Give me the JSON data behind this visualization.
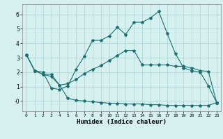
{
  "title": "",
  "xlabel": "Humidex (Indice chaleur)",
  "bg_color": "#d6f0f0",
  "line_color": "#1a7070",
  "grid_color": "#b0d8d8",
  "xlim": [
    -0.5,
    23.5
  ],
  "ylim": [
    -0.7,
    6.7
  ],
  "yticks": [
    0,
    1,
    2,
    3,
    4,
    5,
    6
  ],
  "ytick_labels": [
    "-0",
    "1",
    "2",
    "3",
    "4",
    "5",
    "6"
  ],
  "xticks": [
    0,
    1,
    2,
    3,
    4,
    5,
    6,
    7,
    8,
    9,
    10,
    11,
    12,
    13,
    14,
    15,
    16,
    17,
    18,
    19,
    20,
    21,
    22,
    23
  ],
  "series1": [
    3.2,
    2.1,
    2.0,
    0.9,
    0.8,
    1.05,
    2.2,
    3.1,
    4.2,
    4.2,
    4.5,
    5.1,
    4.6,
    5.45,
    5.45,
    5.75,
    6.2,
    4.7,
    3.3,
    2.3,
    2.1,
    2.0,
    1.05,
    -0.1
  ],
  "series2": [
    3.2,
    2.1,
    1.85,
    1.85,
    1.1,
    1.2,
    1.5,
    1.9,
    2.2,
    2.45,
    2.8,
    3.15,
    3.5,
    3.5,
    2.5,
    2.5,
    2.5,
    2.5,
    2.4,
    2.4,
    2.3,
    2.1,
    2.05,
    -0.1
  ],
  "series3": [
    3.2,
    2.1,
    1.85,
    1.7,
    1.1,
    0.2,
    0.05,
    0.0,
    -0.05,
    -0.1,
    -0.15,
    -0.15,
    -0.2,
    -0.2,
    -0.2,
    -0.25,
    -0.25,
    -0.3,
    -0.3,
    -0.3,
    -0.3,
    -0.3,
    -0.3,
    -0.1
  ]
}
